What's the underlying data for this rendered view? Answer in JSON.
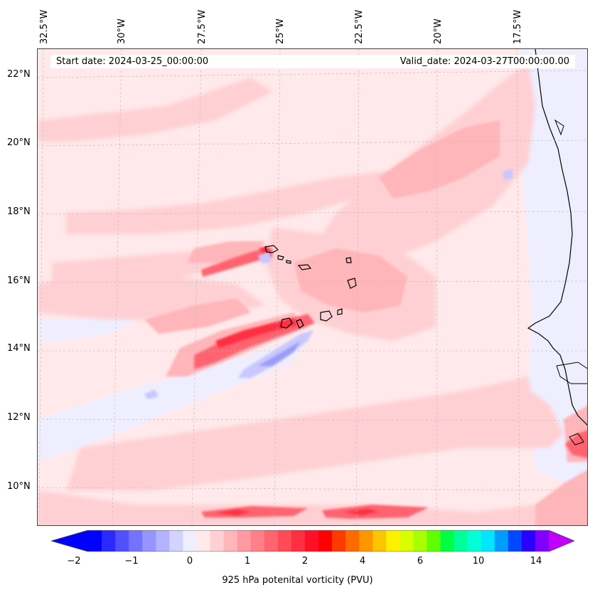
{
  "header": {
    "start_date": "Start date: 2024-03-25_00:00:00",
    "valid_date": "Valid_date: 2024-03-27T00:00:00.00"
  },
  "axes": {
    "lon_labels": [
      "32.5°W",
      "30°W",
      "27.5°W",
      "25°W",
      "22.5°W",
      "20°W",
      "17.5°W"
    ],
    "lat_labels": [
      "22°N",
      "20°N",
      "18°N",
      "16°N",
      "14°N",
      "12°N",
      "10°N"
    ]
  },
  "colorbar": {
    "ticks": [
      "−2",
      "−1",
      "0",
      "1",
      "2",
      "4",
      "6",
      "10",
      "14"
    ],
    "label": "925 hPa potenital vorticity (PVU)",
    "colors": [
      "#0000ff",
      "#2a2aff",
      "#5050ff",
      "#7373ff",
      "#9595ff",
      "#b3b3ff",
      "#d3d3ff",
      "#eeeeff",
      "#ffe9ea",
      "#ffd0d3",
      "#ffb6ba",
      "#ff9aa0",
      "#ff8088",
      "#ff6470",
      "#ff4a58",
      "#ff2e40",
      "#ff1028",
      "#ff0000",
      "#ff3a00",
      "#ff6a00",
      "#ff9600",
      "#ffc400",
      "#fff000",
      "#d8ff00",
      "#a8ff00",
      "#60ff00",
      "#00ff40",
      "#00ff9a",
      "#00ffd8",
      "#00e6ff",
      "#009cff",
      "#0048ff",
      "#2a00ff",
      "#8000ff"
    ],
    "under_color": "#0000ff",
    "over_color": "#c000ff"
  },
  "map_colors": {
    "ocean_base": "#ffe9ea",
    "weak_positive": "#ffd0d3",
    "moderate_positive": "#ffb6ba",
    "strong_positive": "#ff6470",
    "very_strong_positive": "#ff2e40",
    "weak_negative": "#eeeeff",
    "moderate_negative": "#c8c8ff",
    "strong_negative": "#9a9aff",
    "coastline": "#000000"
  }
}
